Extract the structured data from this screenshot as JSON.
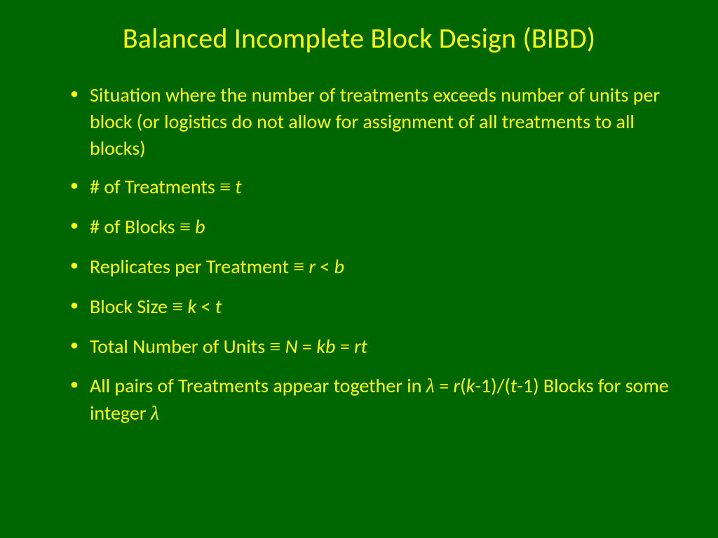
{
  "slide": {
    "background_color": "#006600",
    "text_color": "#ffff00",
    "title": "Balanced Incomplete Block Design (BIBD)",
    "title_fontsize": 40,
    "bullet_fontsize": 28,
    "bullets": [
      {
        "parts": [
          {
            "text": "Situation where the number of treatments exceeds number of units per block (or logistics do not allow for assignment of all treatments to all blocks)"
          }
        ]
      },
      {
        "parts": [
          {
            "text": "# of Treatments "
          },
          {
            "text": "≡",
            "class": "eq"
          },
          {
            "text": " "
          },
          {
            "text": "t",
            "class": "it"
          }
        ]
      },
      {
        "parts": [
          {
            "text": "# of Blocks "
          },
          {
            "text": "≡",
            "class": "eq"
          },
          {
            "text": " "
          },
          {
            "text": "b",
            "class": "it"
          }
        ]
      },
      {
        "parts": [
          {
            "text": "Replicates per Treatment "
          },
          {
            "text": "≡",
            "class": "eq"
          },
          {
            "text": " "
          },
          {
            "text": "r",
            "class": "it"
          },
          {
            "text": " < "
          },
          {
            "text": "b",
            "class": "it"
          }
        ]
      },
      {
        "parts": [
          {
            "text": "Block Size "
          },
          {
            "text": "≡",
            "class": "eq"
          },
          {
            "text": " "
          },
          {
            "text": "k",
            "class": "it"
          },
          {
            "text": " < "
          },
          {
            "text": "t",
            "class": "it"
          }
        ]
      },
      {
        "parts": [
          {
            "text": "Total Number of Units "
          },
          {
            "text": "≡",
            "class": "eq"
          },
          {
            "text": " "
          },
          {
            "text": "N",
            "class": "it"
          },
          {
            "text": " = "
          },
          {
            "text": "kb = rt",
            "class": "it"
          }
        ]
      },
      {
        "parts": [
          {
            "text": "All pairs of Treatments appear together in "
          },
          {
            "text": "λ",
            "class": "it eq"
          },
          {
            "text": " = "
          },
          {
            "text": "r",
            "class": "it"
          },
          {
            "text": "("
          },
          {
            "text": "k",
            "class": "it"
          },
          {
            "text": "-1)/("
          },
          {
            "text": "t",
            "class": "it"
          },
          {
            "text": "-1) Blocks for some integer "
          },
          {
            "text": "λ",
            "class": "it eq"
          }
        ]
      }
    ]
  }
}
